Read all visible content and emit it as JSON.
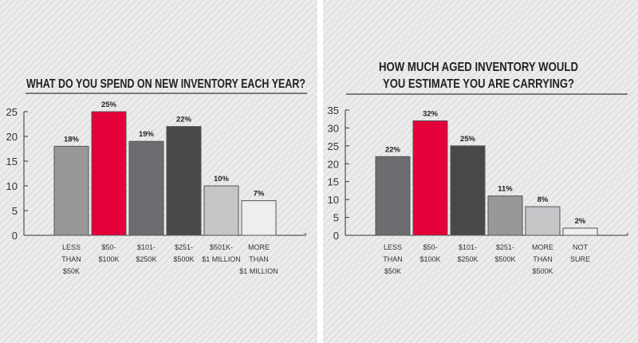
{
  "chart_data": [
    {
      "type": "bar",
      "title": "WHAT DO YOU SPEND ON NEW INVENTORY EACH YEAR?",
      "title_lines": [
        "WHAT DO YOU SPEND ON NEW INVENTORY EACH YEAR?"
      ],
      "categories": [
        [
          "LESS",
          "THAN",
          "$50K"
        ],
        [
          "$50-",
          "$100K"
        ],
        [
          "$101-",
          "$250K"
        ],
        [
          "$251-",
          "$500K"
        ],
        [
          "$501K-",
          "$1 MILLION"
        ],
        [
          "MORE",
          "THAN",
          "$1 MILLION"
        ]
      ],
      "values": [
        18,
        25,
        19,
        22,
        10,
        7
      ],
      "value_labels": [
        "18%",
        "25%",
        "19%",
        "22%",
        "10%",
        "7%"
      ],
      "colors": [
        "#98989b",
        "#e4003a",
        "#6d6d71",
        "#48484b",
        "#c6c6c9",
        "#eeeeef"
      ],
      "yticks": [
        "0",
        "5",
        "10",
        "15",
        "20",
        "25"
      ],
      "ylim": [
        0,
        25
      ],
      "xlabel": "",
      "ylabel": "",
      "grid": false
    },
    {
      "type": "bar",
      "title": "HOW MUCH AGED INVENTORY WOULD YOU ESTIMATE YOU ARE CARRYING?",
      "title_lines": [
        "HOW MUCH AGED INVENTORY WOULD",
        "YOU ESTIMATE YOU ARE CARRYING?"
      ],
      "categories": [
        [
          "LESS",
          "THAN",
          "$50K"
        ],
        [
          "$50-",
          "$100K"
        ],
        [
          "$101-",
          "$250K"
        ],
        [
          "$251-",
          "$500K"
        ],
        [
          "MORE",
          "THAN",
          "$500K"
        ],
        [
          "NOT",
          "SURE"
        ]
      ],
      "values": [
        22,
        32,
        25,
        11,
        8,
        2
      ],
      "value_labels": [
        "22%",
        "32%",
        "25%",
        "11%",
        "8%",
        "2%"
      ],
      "colors": [
        "#6d6d71",
        "#e4003a",
        "#48484b",
        "#98989b",
        "#c6c6c9",
        "#eeeeef"
      ],
      "yticks": [
        "0",
        "5",
        "10",
        "15",
        "20",
        "25",
        "30",
        "35"
      ],
      "ylim": [
        0,
        35
      ],
      "xlabel": "",
      "ylabel": "",
      "grid": false
    }
  ]
}
